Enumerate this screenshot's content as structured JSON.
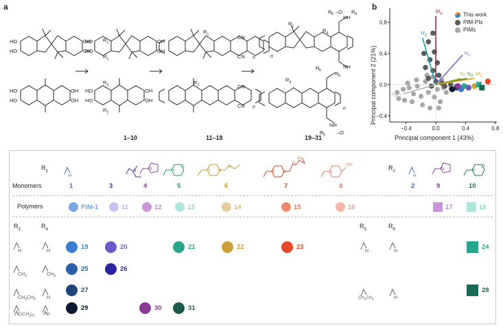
{
  "panel_a": {
    "letter": "a",
    "stage_labels": [
      "1–10",
      "11–18",
      "19–31"
    ],
    "groups": [
      {
        "r": "R",
        "s": "1"
      },
      {
        "r": "R",
        "s": "2"
      },
      {
        "r": "R",
        "s": "3"
      },
      {
        "r": "R",
        "s": "4"
      },
      {
        "r": "R",
        "s": "5"
      },
      {
        "r": "R",
        "s": "6"
      }
    ],
    "atoms": {
      "oh": "HO",
      "ho": "OH",
      "cn": "CN",
      "o": "O",
      "nh": "NH",
      "n": "n"
    }
  },
  "panel_b": {
    "letter": "b",
    "legend": [
      {
        "label": "This work",
        "color": "multi"
      },
      {
        "label": "PIM-PIs",
        "color": "#5b5b5b"
      },
      {
        "label": "PIMs",
        "color": "#a8a8a8"
      }
    ],
    "xlabel": "Principal component 1 (43%)",
    "ylabel": "Principal component 2 (21%)",
    "xticks": [
      "−0.4",
      "0.0",
      "0.4",
      "0.8"
    ],
    "yticks": [
      "0.8",
      "0.4",
      "0.0",
      "−0.4"
    ],
    "vectors": [
      {
        "label": "M",
        "sub": "w",
        "color": "#9c2250"
      },
      {
        "label": "N",
        "sub": "D",
        "color": "#1aa0b0"
      },
      {
        "label": "N",
        "sub": "O",
        "color": "#7b6ec9"
      },
      {
        "label": "N",
        "sub": "S",
        "color": "#a0b43c"
      },
      {
        "label": "N",
        "sub": "N",
        "color": "#5c8a2e"
      },
      {
        "label": "M",
        "sub": "S",
        "color": "#d6a020"
      },
      {
        "label": "A",
        "sub": "BET",
        "color": "#b5b5b5"
      }
    ]
  },
  "bottom": {
    "r1_label": "R",
    "r1_sub": "1",
    "r2_label": "R",
    "r2_sub": "2",
    "monomers_label": "Monomers",
    "polymers_label": "Polymers",
    "r1_groups": [
      "H",
      "",
      "",
      "",
      "",
      "",
      "",
      "OH"
    ],
    "monomer_numbers": [
      {
        "n": "1",
        "color": "#3d6fb5"
      },
      {
        "n": "3",
        "color": "#3a3aa0"
      },
      {
        "n": "4",
        "color": "#8a3fa0"
      },
      {
        "n": "5",
        "color": "#2a8f7a"
      },
      {
        "n": "6",
        "color": "#c69a30"
      },
      {
        "n": "7",
        "color": "#d14a2a"
      },
      {
        "n": "8",
        "color": "#e37f6a"
      }
    ],
    "r2_groups": [
      "H",
      "",
      ""
    ],
    "r2_numbers": [
      {
        "n": "2",
        "color": "#3d6fb5"
      },
      {
        "n": "9",
        "color": "#8a3fa0"
      },
      {
        "n": "10",
        "color": "#1f6f5b"
      }
    ],
    "polymers": [
      {
        "label": "PIM-1",
        "color": "#7aa7e0",
        "tcolor": "#7aa7e0"
      },
      {
        "label": "11",
        "color": "#c9c6ef",
        "tcolor": "#b4b0e6"
      },
      {
        "label": "12",
        "color": "#c996d6",
        "tcolor": "#b784c8"
      },
      {
        "label": "13",
        "color": "#aee6db",
        "tcolor": "#8fd5c8"
      },
      {
        "label": "14",
        "color": "#e6cf9c",
        "tcolor": "#d9b873"
      },
      {
        "label": "15",
        "color": "#ee8a72",
        "tcolor": "#e07058"
      },
      {
        "label": "16",
        "color": "#f5b8a8",
        "tcolor": "#eaa292"
      },
      {
        "label": "17",
        "color": "#c996d6",
        "tcolor": "#b784c8"
      },
      {
        "label": "18",
        "color": "#aee6db",
        "tcolor": "#8fd5c8"
      }
    ],
    "r3_label": "R",
    "r3_sub": "3",
    "r4_label": "R",
    "r4_sub": "4",
    "r5_label": "R",
    "r5_sub": "5",
    "r6_label": "R",
    "r6_sub": "6",
    "rows": [
      {
        "r3": "H",
        "r4": "H"
      },
      {
        "r3": "CH",
        "r3sub": "3",
        "r4": "CH",
        "r4sub": "3"
      },
      {
        "r3": "CH",
        "r3sub": "2",
        "r3b": "CH",
        "r3bsub": "3",
        "r4": "H"
      },
      {
        "r3": "C(CH",
        "r3sub": "3",
        "r3tail": ")",
        "r3tailsub": "3",
        "r4": "H"
      }
    ],
    "r56_rows": [
      {
        "r5": "H",
        "r6": "H"
      },
      {
        "r5": "CH",
        "r5sub": "2",
        "r5b": "CH",
        "r5bsub": "3",
        "r6": "H"
      }
    ],
    "products": [
      {
        "n": "19",
        "color": "#3b7dd0",
        "row": 0
      },
      {
        "n": "20",
        "color": "#6a5bcb",
        "row": 0
      },
      {
        "n": "21",
        "color": "#2aa58d",
        "row": 0
      },
      {
        "n": "22",
        "color": "#d0a03a",
        "row": 0
      },
      {
        "n": "23",
        "color": "#e8472a",
        "row": 0
      },
      {
        "n": "24",
        "color": "#2aa58d",
        "row": 0
      },
      {
        "n": "25",
        "color": "#2b5fa8",
        "row": 1
      },
      {
        "n": "26",
        "color": "#2a23a0",
        "row": 1
      },
      {
        "n": "27",
        "color": "#1f4478",
        "row": 2
      },
      {
        "n": "28",
        "color": "#1b6a58",
        "row": 2
      },
      {
        "n": "29",
        "color": "#0e1a33",
        "row": 3
      },
      {
        "n": "30",
        "color": "#8a3a96",
        "row": 3
      },
      {
        "n": "31",
        "color": "#1d5a4b",
        "row": 3
      }
    ]
  }
}
